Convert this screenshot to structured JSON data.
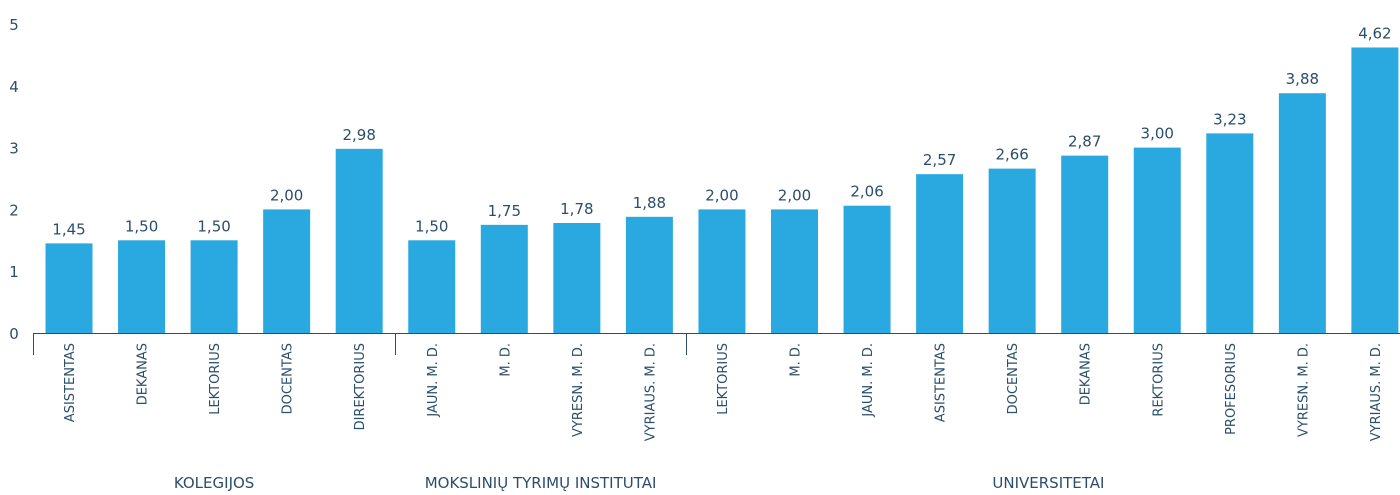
{
  "chart_data": {
    "type": "bar",
    "title": "",
    "xlabel": "",
    "ylabel": "",
    "ylim": [
      0,
      5
    ],
    "yticks": [
      "0",
      "1",
      "2",
      "3",
      "4",
      "5"
    ],
    "grid": false,
    "bar_color": "#29a9e0",
    "text_color": "#2b4e6b",
    "categories": [
      "ASISTENTAS",
      "DEKANAS",
      "LEKTORIUS",
      "DOCENTAS",
      "DIREKTORIUS",
      "JAUN. M. D.",
      "M. D.",
      "VYRESN. M. D.",
      "VYRIAUS. M. D.",
      "LEKTORIUS",
      "M. D.",
      "JAUN. M. D.",
      "ASISTENTAS",
      "DOCENTAS",
      "DEKANAS",
      "REKTORIUS",
      "PROFESORIUS",
      "VYRESN. M. D.",
      "VYRIAUS. M. D."
    ],
    "values": [
      1.45,
      1.5,
      1.5,
      2.0,
      2.98,
      1.5,
      1.75,
      1.78,
      1.88,
      2.0,
      2.0,
      2.06,
      2.57,
      2.66,
      2.87,
      3.0,
      3.23,
      3.88,
      4.62
    ],
    "value_labels": [
      "1,45",
      "1,50",
      "1,50",
      "2,00",
      "2,98",
      "1,50",
      "1,75",
      "1,78",
      "1,88",
      "2,00",
      "2,00",
      "2,06",
      "2,57",
      "2,66",
      "2,87",
      "3,00",
      "3,23",
      "3,88",
      "4,62"
    ],
    "groups": [
      {
        "name": "KOLEGIJOS",
        "start": 0,
        "end": 4
      },
      {
        "name": "MOKSLINIŲ TYRIMŲ INSTITUTAI",
        "start": 5,
        "end": 8
      },
      {
        "name": "UNIVERSITETAI",
        "start": 9,
        "end": 18
      }
    ]
  }
}
